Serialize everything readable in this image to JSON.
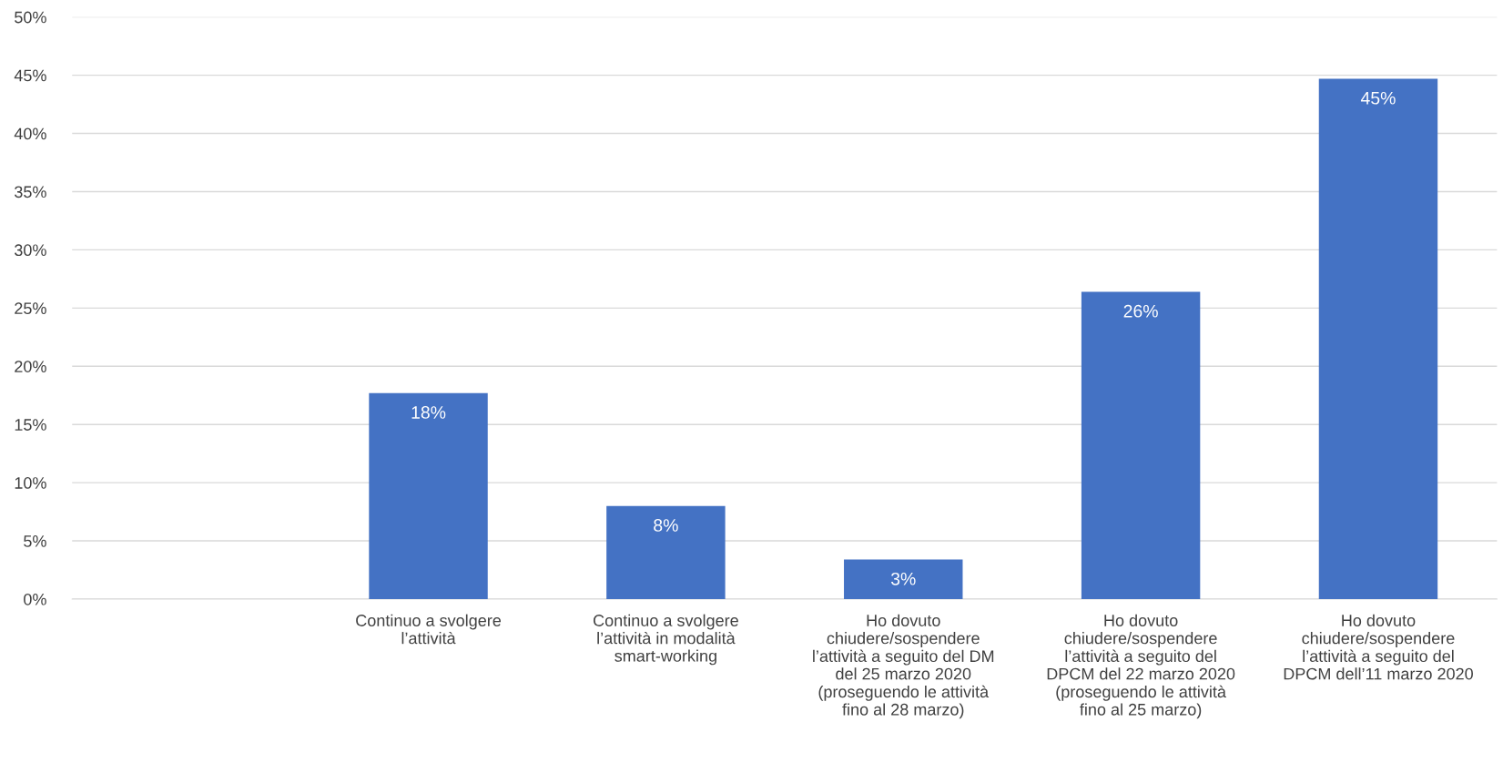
{
  "chart_data": {
    "type": "bar",
    "categories": [
      null,
      "Continuo a svolgere\nl’attività",
      "Continuo a svolgere\nl’attività in modalità\nsmart-working",
      "Ho dovuto\nchiudere/sospendere\nl’attività a seguito del DM\ndel 25 marzo 2020\n(proseguendo le attività\nfino al 28 marzo)",
      "Ho dovuto\nchiudere/sospendere\nl’attività a seguito del\nDPCM del 22 marzo 2020\n(proseguendo le attività\nfino al 25 marzo)",
      "Ho dovuto\nchiudere/sospendere\nl’attività a seguito del\nDPCM dell’11 marzo 2020"
    ],
    "values": [
      null,
      17.7,
      8.0,
      3.4,
      26.4,
      44.7
    ],
    "value_labels": [
      null,
      "18%",
      "8%",
      "3%",
      "26%",
      "45%"
    ],
    "color": "#4472c4",
    "ylim": [
      0,
      50
    ],
    "yticks": [
      {
        "value": 0,
        "label": "0%"
      },
      {
        "value": 5,
        "label": "5%"
      },
      {
        "value": 10,
        "label": "10%"
      },
      {
        "value": 15,
        "label": "15%"
      },
      {
        "value": 20,
        "label": "20%"
      },
      {
        "value": 25,
        "label": "25%"
      },
      {
        "value": 30,
        "label": "30%"
      },
      {
        "value": 35,
        "label": "35%"
      },
      {
        "value": 40,
        "label": "40%"
      },
      {
        "value": 45,
        "label": "45%"
      },
      {
        "value": 50,
        "label": "50%"
      }
    ],
    "grid": "y"
  }
}
